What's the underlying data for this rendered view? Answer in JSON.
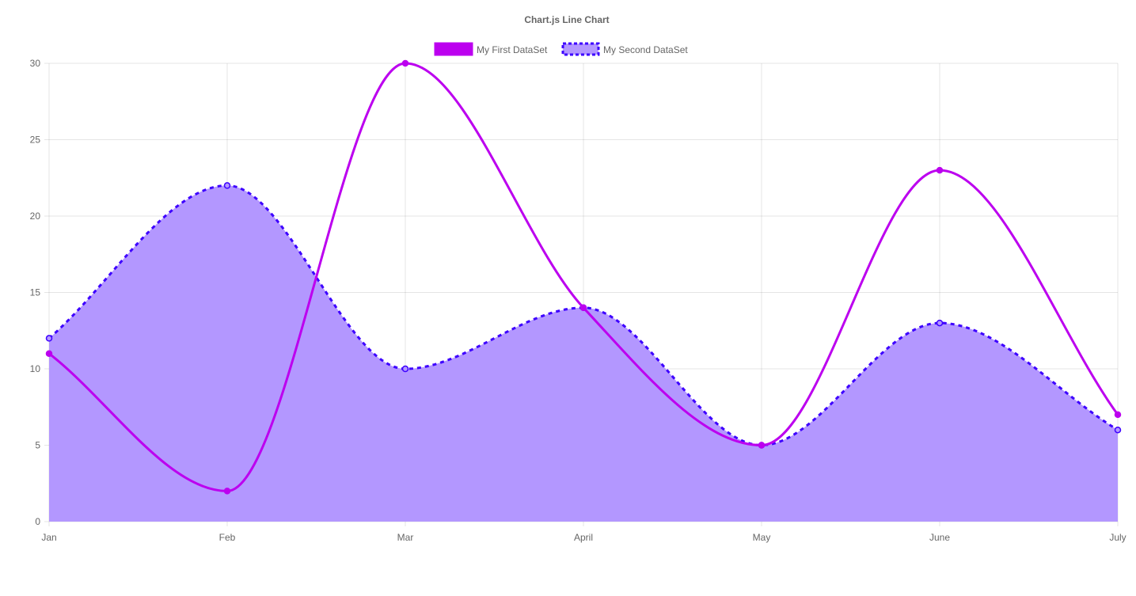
{
  "chart_data": {
    "type": "line",
    "title": "Chart.js Line Chart",
    "categories": [
      "Jan",
      "Feb",
      "Mar",
      "April",
      "May",
      "June",
      "July"
    ],
    "ylim": [
      0,
      30
    ],
    "yticks": [
      0,
      5,
      10,
      15,
      20,
      25,
      30
    ],
    "grid": true,
    "legend_position": "top",
    "series": [
      {
        "name": "My First DataSet",
        "values": [
          11,
          2,
          30,
          14,
          5,
          23,
          7
        ],
        "color": "#bc00ef",
        "fill": false,
        "dashed": false
      },
      {
        "name": "My Second DataSet",
        "values": [
          12,
          22,
          10,
          14,
          5,
          13,
          6
        ],
        "color": "#3d00ff",
        "fill_color": "#b397ff",
        "fill": true,
        "dashed": true
      }
    ]
  }
}
